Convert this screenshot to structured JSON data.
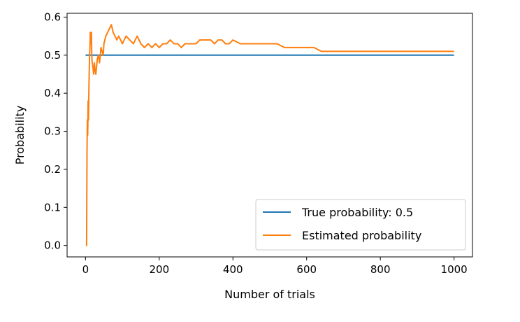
{
  "chart_data": {
    "type": "line",
    "title": "",
    "xlabel": "Number of trials",
    "ylabel": "Probability",
    "xlim": [
      -50,
      1050
    ],
    "ylim": [
      -0.03,
      0.61
    ],
    "x_ticks": [
      0,
      200,
      400,
      600,
      800,
      1000
    ],
    "x_tick_labels": [
      "0",
      "200",
      "400",
      "600",
      "800",
      "1000"
    ],
    "y_ticks": [
      0.0,
      0.1,
      0.2,
      0.3,
      0.4,
      0.5,
      0.6
    ],
    "y_tick_labels": [
      "0.0",
      "0.1",
      "0.2",
      "0.3",
      "0.4",
      "0.5",
      "0.6"
    ],
    "grid": false,
    "legend_position": "lower-right",
    "series": [
      {
        "name": "True probability: 0.5",
        "color": "#1f77b4",
        "x": [
          0,
          1000
        ],
        "y": [
          0.5,
          0.5
        ]
      },
      {
        "name": "Estimated probability",
        "color": "#ff7f0e",
        "x": [
          1,
          2,
          3,
          4,
          5,
          6,
          7,
          8,
          9,
          10,
          11,
          12,
          13,
          14,
          15,
          16,
          17,
          18,
          20,
          22,
          24,
          26,
          28,
          30,
          32,
          35,
          38,
          40,
          42,
          45,
          48,
          50,
          55,
          60,
          65,
          70,
          75,
          80,
          85,
          90,
          95,
          100,
          110,
          120,
          130,
          140,
          150,
          160,
          170,
          180,
          190,
          200,
          210,
          220,
          230,
          240,
          250,
          260,
          270,
          280,
          290,
          300,
          310,
          320,
          330,
          340,
          350,
          360,
          370,
          380,
          390,
          400,
          420,
          440,
          460,
          480,
          500,
          520,
          540,
          560,
          580,
          600,
          620,
          640,
          660,
          680,
          700,
          720,
          740,
          760,
          780,
          800,
          820,
          840,
          860,
          880,
          900,
          920,
          940,
          960,
          980,
          1000
        ],
        "y": [
          0.0,
          0.0,
          0.0,
          0.25,
          0.33,
          0.29,
          0.38,
          0.33,
          0.4,
          0.45,
          0.5,
          0.52,
          0.56,
          0.55,
          0.53,
          0.56,
          0.5,
          0.48,
          0.47,
          0.45,
          0.48,
          0.46,
          0.45,
          0.47,
          0.49,
          0.5,
          0.48,
          0.5,
          0.52,
          0.51,
          0.5,
          0.53,
          0.55,
          0.56,
          0.57,
          0.58,
          0.56,
          0.55,
          0.54,
          0.55,
          0.54,
          0.53,
          0.55,
          0.54,
          0.53,
          0.55,
          0.53,
          0.52,
          0.53,
          0.52,
          0.53,
          0.52,
          0.53,
          0.53,
          0.54,
          0.53,
          0.53,
          0.52,
          0.53,
          0.53,
          0.53,
          0.53,
          0.54,
          0.54,
          0.54,
          0.54,
          0.53,
          0.54,
          0.54,
          0.53,
          0.53,
          0.54,
          0.53,
          0.53,
          0.53,
          0.53,
          0.53,
          0.53,
          0.52,
          0.52,
          0.52,
          0.52,
          0.52,
          0.51,
          0.51,
          0.51,
          0.51,
          0.51,
          0.51,
          0.51,
          0.51,
          0.51,
          0.51,
          0.51,
          0.51,
          0.51,
          0.51,
          0.51,
          0.51,
          0.51,
          0.51,
          0.51
        ]
      }
    ]
  }
}
